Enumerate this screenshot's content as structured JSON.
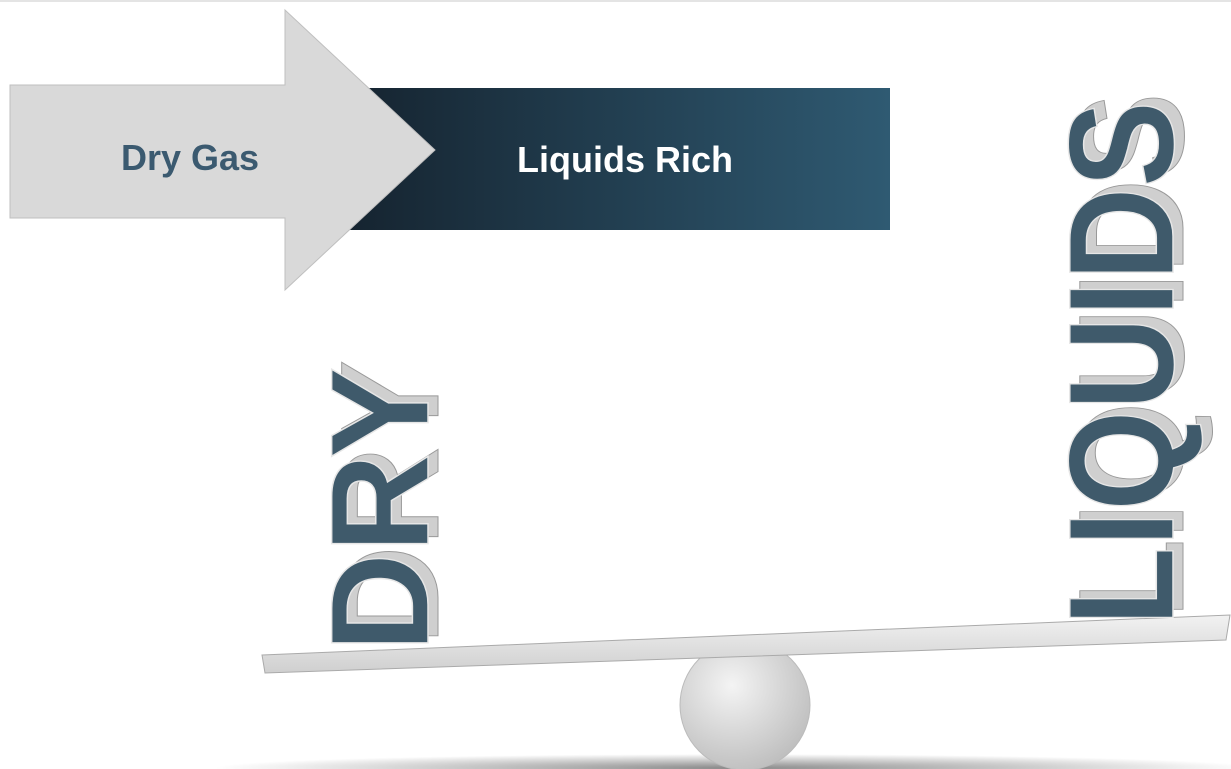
{
  "arrow": {
    "from": "Dry Gas",
    "to": "Liquids Rich"
  },
  "balance": {
    "left": "DRY",
    "right": "LIQUIDS"
  }
}
